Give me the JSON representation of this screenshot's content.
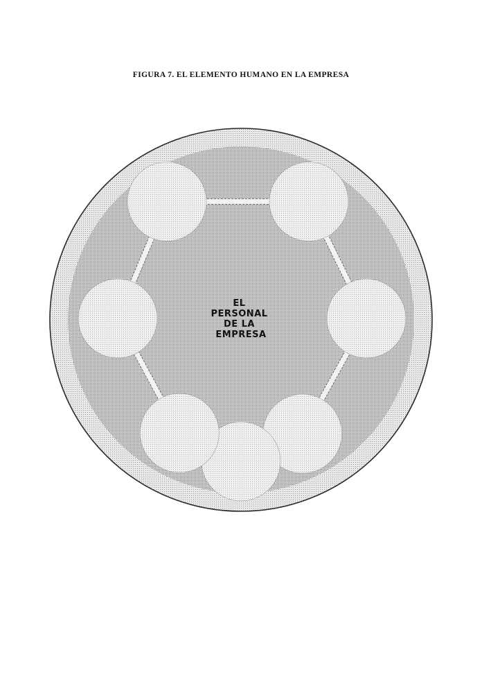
{
  "figure": {
    "caption": "FIGURA 7.  EL ELEMENTO HUMANO EN LA EMPRESA"
  },
  "diagram": {
    "center_lines": [
      "EL",
      "PERSONAL",
      "DE LA",
      "EMPRESA"
    ],
    "nodes": [
      {
        "id": "node-1",
        "lines": [
          "",
          ""
        ]
      },
      {
        "id": "node-2",
        "lines": [
          ""
        ]
      },
      {
        "id": "node-3",
        "lines": [
          ""
        ]
      },
      {
        "id": "node-4",
        "lines": [
          "",
          "",
          ""
        ]
      },
      {
        "id": "node-5",
        "lines": [
          "",
          "",
          ""
        ]
      },
      {
        "id": "node-6",
        "lines": [
          "",
          ""
        ]
      },
      {
        "id": "node-7",
        "lines": [
          "",
          "",
          ""
        ]
      }
    ],
    "colors": {
      "outer_ring": "#e7e7e7",
      "inner_disc": "#cdcdcd",
      "node_fill": "#ececec",
      "outline": "#2a2a2a"
    }
  }
}
